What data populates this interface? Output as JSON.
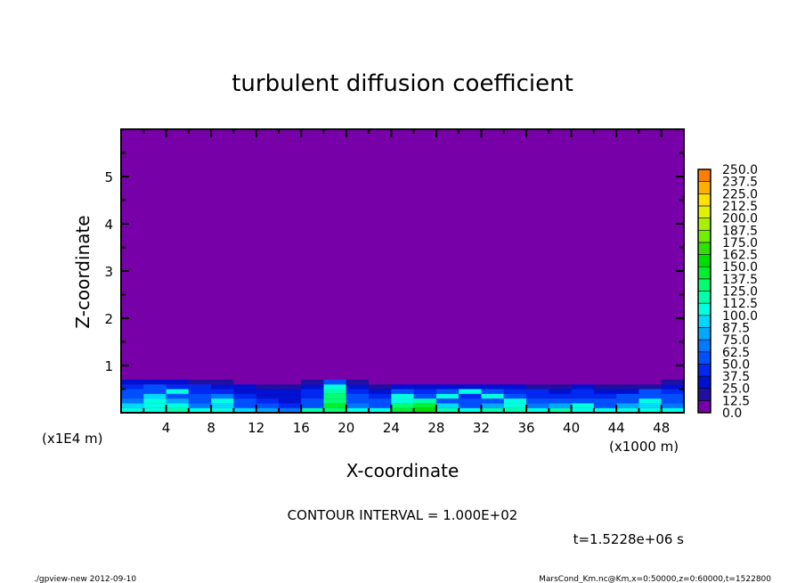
{
  "chart_data": {
    "type": "heatmap",
    "title": "turbulent diffusion coefficient",
    "xlabel": "X-coordinate",
    "ylabel": "Z-coordinate",
    "x_unit_label": "(x1000 m)",
    "y_unit_label": "(x1E4 m)",
    "xlim": [
      0,
      50
    ],
    "ylim": [
      0,
      6
    ],
    "x_ticks": [
      4,
      8,
      12,
      16,
      20,
      24,
      28,
      32,
      36,
      40,
      44,
      48
    ],
    "y_ticks": [
      1,
      2,
      3,
      4,
      5
    ],
    "x_tick_labels": [
      "4",
      "8",
      "12",
      "16",
      "20",
      "24",
      "28",
      "32",
      "36",
      "40",
      "44",
      "48"
    ],
    "y_tick_labels": [
      "1",
      "2",
      "3",
      "4",
      "5"
    ],
    "background_value": 0.0,
    "grid_x": [
      1,
      3,
      5,
      7,
      9,
      11,
      13,
      15,
      17,
      19,
      21,
      23,
      25,
      27,
      29,
      31,
      33,
      35,
      37,
      39,
      41,
      43,
      45,
      47,
      49
    ],
    "grid_z": [
      0.05,
      0.15,
      0.25,
      0.35,
      0.45,
      0.55,
      0.65
    ],
    "values": [
      [
        110,
        100,
        115,
        110,
        105,
        90,
        80,
        70,
        115,
        130,
        110,
        100,
        140,
        150,
        120,
        110,
        115,
        120,
        110,
        115,
        110,
        105,
        110,
        100,
        110
      ],
      [
        90,
        105,
        100,
        70,
        90,
        60,
        50,
        40,
        60,
        140,
        70,
        60,
        130,
        140,
        90,
        60,
        80,
        100,
        70,
        80,
        100,
        60,
        80,
        90,
        70
      ],
      [
        70,
        100,
        80,
        60,
        110,
        50,
        40,
        30,
        50,
        135,
        60,
        50,
        110,
        120,
        60,
        50,
        60,
        105,
        60,
        50,
        60,
        50,
        60,
        100,
        60
      ],
      [
        60,
        90,
        60,
        50,
        70,
        40,
        30,
        30,
        40,
        130,
        50,
        40,
        100,
        60,
        110,
        40,
        105,
        50,
        40,
        40,
        40,
        40,
        50,
        50,
        60
      ],
      [
        50,
        60,
        100,
        40,
        40,
        30,
        30,
        30,
        40,
        120,
        40,
        30,
        50,
        40,
        50,
        105,
        50,
        40,
        40,
        30,
        40,
        30,
        30,
        50,
        40
      ],
      [
        40,
        50,
        40,
        40,
        30,
        25,
        20,
        20,
        30,
        100,
        30,
        20,
        30,
        30,
        30,
        30,
        30,
        30,
        20,
        20,
        25,
        20,
        20,
        20,
        30
      ],
      [
        30,
        30,
        30,
        20,
        20,
        10,
        10,
        10,
        20,
        60,
        20,
        10,
        10,
        10,
        10,
        10,
        10,
        10,
        10,
        10,
        10,
        5,
        5,
        5,
        20
      ]
    ],
    "colorbar": {
      "levels": [
        "0.0",
        "12.5",
        "25.0",
        "37.5",
        "50.0",
        "62.5",
        "75.0",
        "87.5",
        "100.0",
        "112.5",
        "125.0",
        "137.5",
        "150.0",
        "162.5",
        "175.0",
        "187.5",
        "200.0",
        "212.5",
        "225.0",
        "237.5",
        "250.0"
      ],
      "colors": [
        "#7800a8",
        "#2010a0",
        "#0010d0",
        "#0028f0",
        "#0050ff",
        "#0078ff",
        "#00a8ff",
        "#00d8ff",
        "#00ffe0",
        "#00ffa8",
        "#00ff70",
        "#00f030",
        "#00e000",
        "#30e000",
        "#70f000",
        "#a8f000",
        "#e0f000",
        "#ffe000",
        "#ffb000",
        "#ff8000",
        "#ff5000",
        "#ff2000",
        "#ff3030",
        "#ff6060",
        "#ff9090"
      ],
      "range": [
        0,
        250
      ]
    },
    "contour_interval": "CONTOUR INTERVAL = 1.000E+02",
    "time_label": "t=1.5228e+06 s"
  },
  "footer": {
    "left": "./gpview-new  2012-09-10",
    "right": "MarsCond_Km.nc@Km,x=0:50000,z=0:60000,t=1522800"
  }
}
